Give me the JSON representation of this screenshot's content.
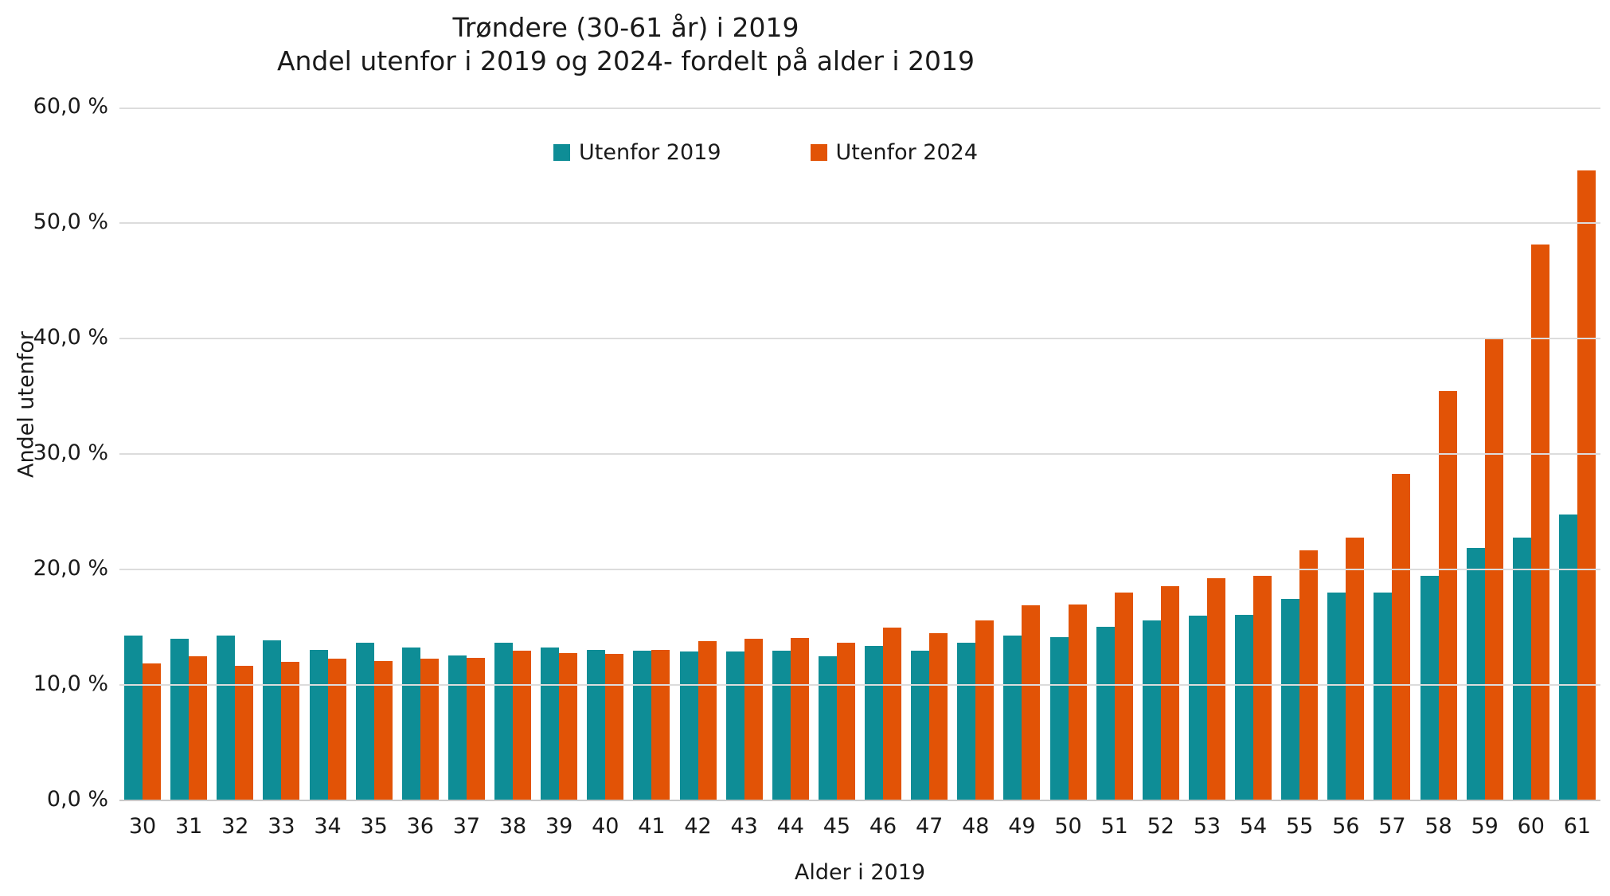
{
  "title": {
    "line1": "Trøndere (30-61 år) i 2019",
    "line2": "Andel utenfor i 2019 og 2024- fordelt på alder i 2019"
  },
  "legend": [
    {
      "label": "Utenfor 2019",
      "color": "#0e8d96"
    },
    {
      "label": "Utenfor 2024",
      "color": "#e25306"
    }
  ],
  "chart_data": {
    "type": "bar",
    "title": "Trøndere (30-61 år) i 2019 — Andel utenfor i 2019 og 2024- fordelt på alder i 2019",
    "xlabel": "Alder i 2019",
    "ylabel": "Andel utenfor",
    "ylim": [
      0,
      60
    ],
    "grid": true,
    "legend_position": "top",
    "ytick_labels": [
      "0,0 %",
      "10,0 %",
      "20,0 %",
      "30,0 %",
      "40,0 %",
      "50,0 %",
      "60,0 %"
    ],
    "ytick_values": [
      0,
      10,
      20,
      30,
      40,
      50,
      60
    ],
    "categories": [
      30,
      31,
      32,
      33,
      34,
      35,
      36,
      37,
      38,
      39,
      40,
      41,
      42,
      43,
      44,
      45,
      46,
      47,
      48,
      49,
      50,
      51,
      52,
      53,
      54,
      55,
      56,
      57,
      58,
      59,
      60,
      61
    ],
    "series": [
      {
        "name": "Utenfor 2019",
        "color": "#0e8d96",
        "values": [
          14.2,
          13.9,
          14.2,
          13.8,
          13.0,
          13.6,
          13.2,
          12.5,
          13.6,
          13.2,
          13.0,
          12.9,
          12.8,
          12.8,
          12.9,
          12.4,
          13.3,
          12.9,
          13.6,
          14.2,
          14.1,
          15.0,
          15.5,
          15.9,
          16.0,
          17.4,
          17.9,
          17.9,
          19.4,
          21.8,
          22.7,
          24.7
        ]
      },
      {
        "name": "Utenfor 2024",
        "color": "#e25306",
        "values": [
          11.8,
          12.4,
          11.6,
          11.9,
          12.2,
          12.0,
          12.2,
          12.3,
          12.9,
          12.7,
          12.6,
          13.0,
          13.7,
          13.9,
          14.0,
          13.6,
          14.9,
          14.4,
          15.5,
          16.8,
          16.9,
          17.9,
          18.5,
          19.2,
          19.4,
          21.6,
          22.7,
          28.2,
          35.4,
          40.0,
          48.1,
          54.5
        ]
      }
    ]
  }
}
